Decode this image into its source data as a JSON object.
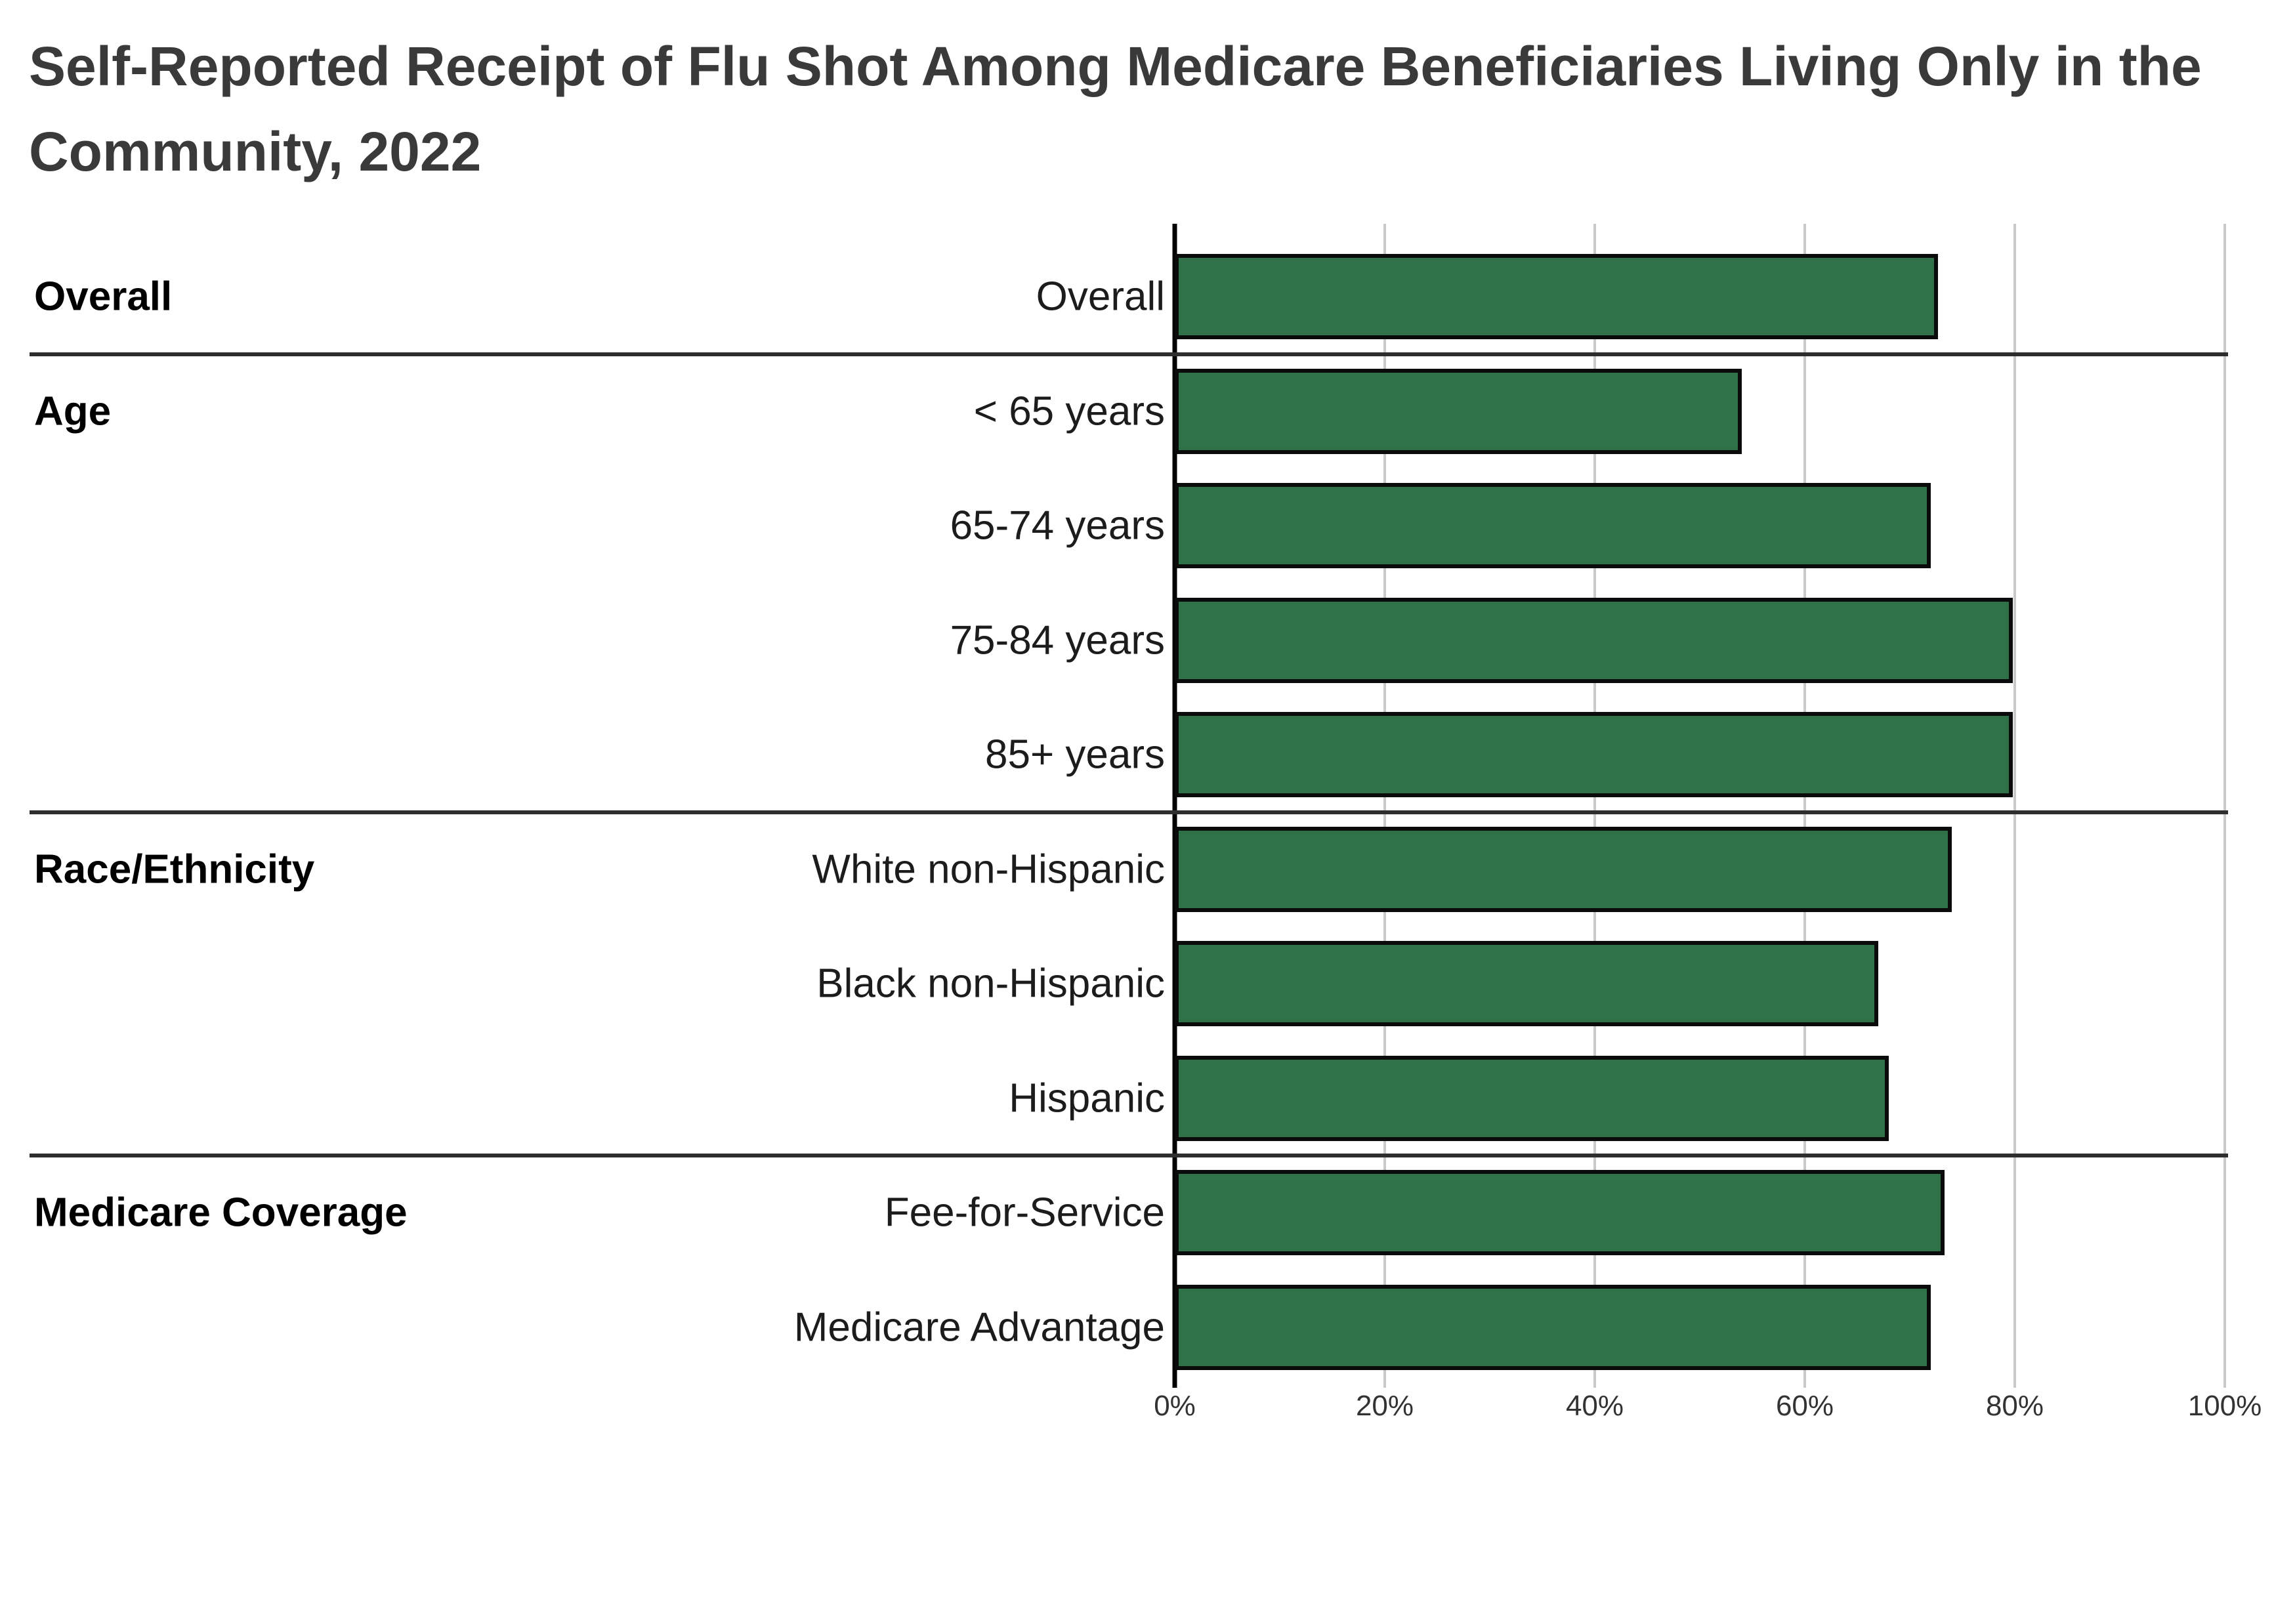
{
  "title_lines": [
    "Self-Reported Receipt of Flu Shot Among Medicare Beneficiaries Living Only in the",
    "Community, 2022"
  ],
  "colors": {
    "bar_fill": "#2f7148",
    "bar_border": "#0b0b0b",
    "axis_line": "#000000",
    "gridline": "#c9c9c9",
    "separator": "#2e2e2e",
    "title_text": "#3a3a3a",
    "label_text": "#1c1c1c",
    "tick_text": "#333333"
  },
  "chart_data": {
    "type": "bar",
    "orientation": "horizontal",
    "title": "Self-Reported Receipt of Flu Shot Among Medicare Beneficiaries Living Only in the Community, 2022",
    "unit": "percent",
    "xlim": [
      0,
      100
    ],
    "x_ticks": [
      "0%",
      "20%",
      "40%",
      "60%",
      "80%",
      "100%"
    ],
    "grid": true,
    "legend": false,
    "groups": [
      {
        "label": "Overall",
        "rows": [
          {
            "label": "Overall",
            "value": 72.7
          }
        ]
      },
      {
        "label": "Age",
        "rows": [
          {
            "label": "< 65 years",
            "value": 54.0
          },
          {
            "label": "65-74 years",
            "value": 72.0
          },
          {
            "label": "75-84 years",
            "value": 79.8
          },
          {
            "label": "85+ years",
            "value": 79.8
          }
        ]
      },
      {
        "label": "Race/Ethnicity",
        "rows": [
          {
            "label": "White non-Hispanic",
            "value": 74.0
          },
          {
            "label": "Black non-Hispanic",
            "value": 67.0
          },
          {
            "label": "Hispanic",
            "value": 68.0
          }
        ]
      },
      {
        "label": "Medicare Coverage",
        "rows": [
          {
            "label": "Fee-for-Service",
            "value": 73.3
          },
          {
            "label": "Medicare Advantage",
            "value": 72.0
          }
        ]
      }
    ]
  }
}
